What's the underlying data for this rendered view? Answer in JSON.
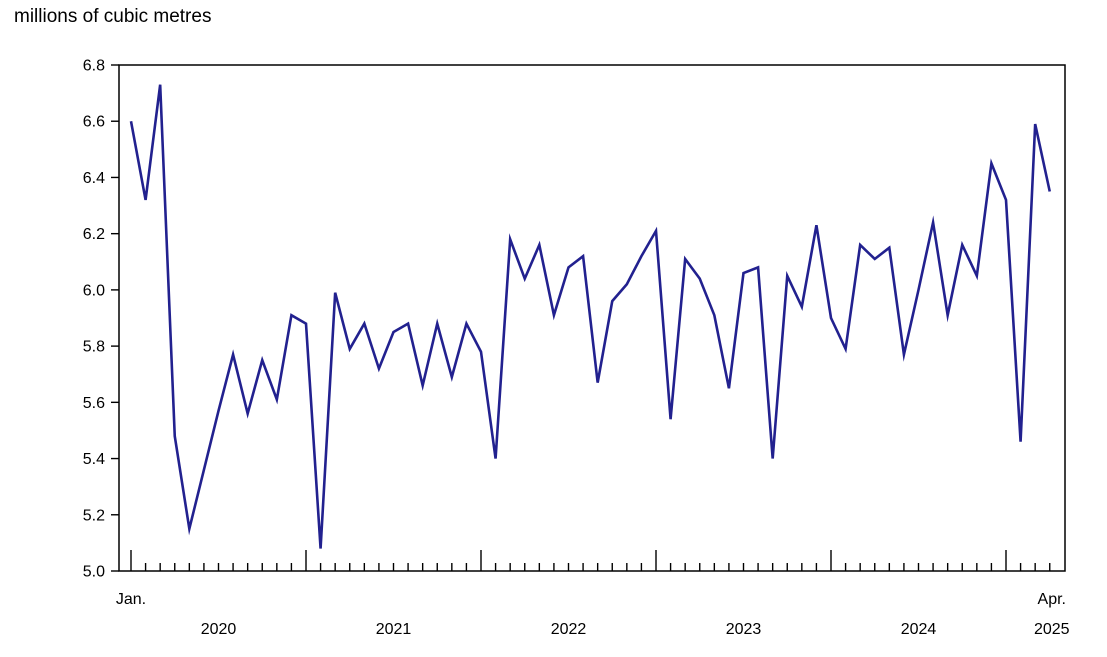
{
  "chart_data": {
    "type": "line",
    "title": "millions of cubic metres",
    "ylabel": "millions of cubic metres",
    "xlabel": "",
    "frequency": "monthly",
    "x_start": "2020-01",
    "x_end": "2025-04",
    "months": [
      "2020-01",
      "2020-02",
      "2020-03",
      "2020-04",
      "2020-05",
      "2020-06",
      "2020-07",
      "2020-08",
      "2020-09",
      "2020-10",
      "2020-11",
      "2020-12",
      "2021-01",
      "2021-02",
      "2021-03",
      "2021-04",
      "2021-05",
      "2021-06",
      "2021-07",
      "2021-08",
      "2021-09",
      "2021-10",
      "2021-11",
      "2021-12",
      "2022-01",
      "2022-02",
      "2022-03",
      "2022-04",
      "2022-05",
      "2022-06",
      "2022-07",
      "2022-08",
      "2022-09",
      "2022-10",
      "2022-11",
      "2022-12",
      "2023-01",
      "2023-02",
      "2023-03",
      "2023-04",
      "2023-05",
      "2023-06",
      "2023-07",
      "2023-08",
      "2023-09",
      "2023-10",
      "2023-11",
      "2023-12",
      "2024-01",
      "2024-02",
      "2024-03",
      "2024-04",
      "2024-05",
      "2024-06",
      "2024-07",
      "2024-08",
      "2024-09",
      "2024-10",
      "2024-11",
      "2024-12",
      "2025-01",
      "2025-02",
      "2025-03",
      "2025-04"
    ],
    "values": [
      6.6,
      6.32,
      6.73,
      5.48,
      5.15,
      5.36,
      5.57,
      5.77,
      5.56,
      5.75,
      5.61,
      5.91,
      5.88,
      5.08,
      5.99,
      5.79,
      5.88,
      5.72,
      5.85,
      5.88,
      5.66,
      5.88,
      5.69,
      5.88,
      5.78,
      5.4,
      6.18,
      6.04,
      6.16,
      5.91,
      6.08,
      6.12,
      5.67,
      5.96,
      6.02,
      6.12,
      6.21,
      5.54,
      6.11,
      6.04,
      5.91,
      5.65,
      6.06,
      6.08,
      5.4,
      6.05,
      5.94,
      6.23,
      5.9,
      5.79,
      6.16,
      6.11,
      6.15,
      5.77,
      6.0,
      6.24,
      5.91,
      6.16,
      6.05,
      6.45,
      6.32,
      5.46,
      6.59,
      6.35
    ],
    "ylim": [
      5.0,
      6.8
    ],
    "y_tick_labels": [
      "6.8",
      "6.6",
      "6.4",
      "6.2",
      "6.0",
      "5.8",
      "5.6",
      "5.4",
      "5.2",
      "5.0"
    ],
    "x_first_point_label": "Jan.",
    "x_last_point_label": "Apr.",
    "x_year_labels": [
      "2020",
      "2021",
      "2022",
      "2023",
      "2024",
      "2025"
    ],
    "grid": false,
    "legend": false,
    "line_color": "#22218f",
    "axis_color": "#000000",
    "background_color": "#ffffff"
  }
}
